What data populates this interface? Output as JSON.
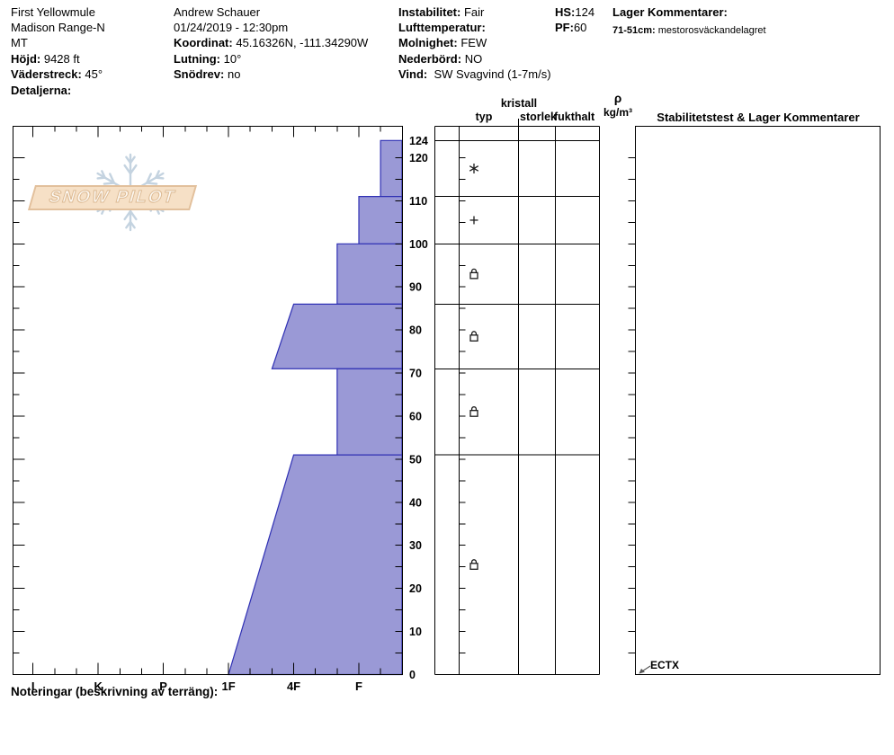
{
  "header": {
    "col1": {
      "location": "First Yellowmule",
      "range": "Madison Range-N",
      "state": "MT",
      "hojd_label": "Höjd:",
      "hojd_value": "9428 ft",
      "vaderstreck_label": "Väderstreck:",
      "vaderstreck_value": "45°",
      "detaljerna_label": "Detaljerna:"
    },
    "col2": {
      "observer": "Andrew Schauer",
      "datetime": "01/24/2019 - 12:30pm",
      "koordinat_label": "Koordinat:",
      "koordinat_value": "45.16326N, -111.34290W",
      "lutning_label": "Lutning:",
      "lutning_value": "10°",
      "snodrev_label": "Snödrev:",
      "snodrev_value": "no"
    },
    "col3": {
      "instabilitet_label": "Instabilitet:",
      "instabilitet_value": "Fair",
      "lufttemperatur_label": "Lufttemperatur:",
      "molnighet_label": "Molnighet:",
      "molnighet_value": "FEW",
      "nederbord_label": "Nederbörd:",
      "nederbord_value": "NO",
      "vind_label": "Vind:",
      "vind_value": "SW Svagvind (1-7m/s)"
    },
    "col4": {
      "hs_label": "HS:",
      "hs_value": "124",
      "pf_label": "PF:",
      "pf_value": "60"
    },
    "col5": {
      "lager_label": "Lager Kommentarer:",
      "row_label": "71-51cm:",
      "row_value": "mestorosväckandelagret"
    }
  },
  "columns": {
    "kristall": "kristall",
    "typ": "typ",
    "storlek": "storlek",
    "fukthalt": "fukthalt",
    "rho": "ρ",
    "rho_unit": "kg/m³",
    "stability": "Stabilitetstest & Lager Kommentarer"
  },
  "footer": {
    "noteringar": "Noteringar (beskrivning av terräng):"
  },
  "logo": {
    "text": "SNOW PILOT"
  },
  "chart_data": {
    "type": "area",
    "subtype": "snow-hardness-profile",
    "depth_axis": {
      "unit": "cm",
      "min": 0,
      "max": 124,
      "tick_labels": [
        124,
        120,
        110,
        100,
        90,
        80,
        70,
        60,
        50,
        40,
        30,
        20,
        10,
        0
      ],
      "minor_tick_cm": 5
    },
    "hardness_axis": {
      "categories": [
        "I",
        "K",
        "P",
        "1F",
        "4F",
        "F"
      ],
      "direction": "hard-left-soft-right",
      "minor_divisions_per_step": 3
    },
    "layers": [
      {
        "top_cm": 124,
        "bottom_cm": 111,
        "hardness_top": "F-",
        "hardness_bottom": "F-",
        "code_top": 5.333,
        "code_bottom": 5.333,
        "symbol": "star"
      },
      {
        "top_cm": 111,
        "bottom_cm": 100,
        "hardness_top": "F",
        "hardness_bottom": "F",
        "code_top": 5.0,
        "code_bottom": 5.0,
        "symbol": "plus"
      },
      {
        "top_cm": 100,
        "bottom_cm": 86,
        "hardness_top": "F+",
        "hardness_bottom": "F+",
        "code_top": 4.667,
        "code_bottom": 4.667,
        "symbol": "lock"
      },
      {
        "top_cm": 86,
        "bottom_cm": 71,
        "hardness_top": "4F",
        "hardness_bottom": "4F+",
        "code_top": 4.0,
        "code_bottom": 3.667,
        "symbol": "lock"
      },
      {
        "top_cm": 71,
        "bottom_cm": 51,
        "hardness_top": "F+",
        "hardness_bottom": "F+",
        "code_top": 4.667,
        "code_bottom": 4.667,
        "symbol": "lock"
      },
      {
        "top_cm": 51,
        "bottom_cm": 0,
        "hardness_top": "4F",
        "hardness_bottom": "1F",
        "code_top": 4.0,
        "code_bottom": 3.0,
        "symbol": "lock"
      }
    ],
    "colors": {
      "fill": "#9a99d6",
      "stroke": "#2f30b4",
      "axis": "#000000",
      "arrow": "#555555"
    },
    "annotations": [
      {
        "label": "ECTX",
        "depth_cm": 0,
        "column": "stability-tests"
      }
    ],
    "grid": "layer-boundaries-only",
    "legend": "none"
  }
}
